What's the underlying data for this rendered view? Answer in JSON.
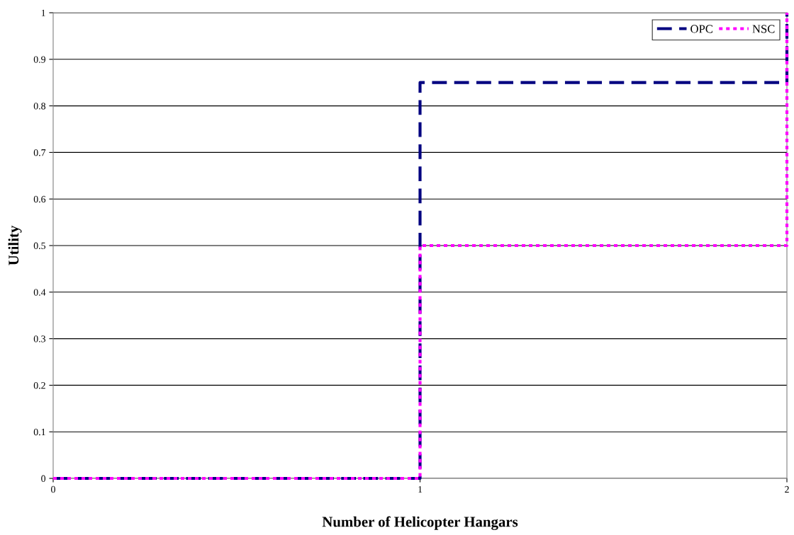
{
  "chart_data": {
    "type": "step",
    "xlabel": "Number of Helicopter Hangars",
    "ylabel": "Utility",
    "x": [
      0,
      1,
      2
    ],
    "series": [
      {
        "name": "OPC",
        "color": "#000080",
        "values": [
          0,
          0.85,
          1
        ],
        "line_style": "dashed"
      },
      {
        "name": "NSC",
        "color": "#ff00ff",
        "values": [
          0,
          0.5,
          1
        ],
        "line_style": "dotted"
      }
    ],
    "xlim": [
      0,
      2
    ],
    "xticks": [
      0,
      1,
      2
    ],
    "ylim": [
      0,
      1
    ],
    "yticks": [
      0,
      0.1,
      0.2,
      0.3,
      0.4,
      0.5,
      0.6,
      0.7,
      0.8,
      0.9,
      1
    ],
    "grid": "y",
    "legend": "top right",
    "marker": "none"
  }
}
